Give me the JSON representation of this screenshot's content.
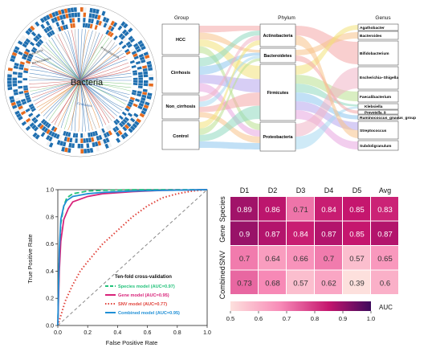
{
  "tree": {
    "center_label": "Bacteria",
    "small_labels": [
      "Actinobacteria",
      "Bacteroidetes",
      "Firmicutes",
      "Proteobacteria"
    ]
  },
  "sankey": {
    "headers": [
      "Group",
      "Phylum",
      "Genus"
    ],
    "groups": [
      "HCC",
      "Cirrhosis",
      "Non_cirrhosis",
      "Control"
    ],
    "phyla": [
      "Actinobacteria",
      "Bacteroidetes",
      "Firmicutes",
      "Proteobacteria"
    ],
    "genera": [
      "Agathobacter",
      "Bacteroides",
      "Bifidobacterium",
      "Escherichia–Shigella",
      "Faecalibacterium",
      "Klebsiella",
      "Prevotella_9",
      "Ruminococcus_gnavus_group",
      "Streptococcus",
      "Subdoligranulum"
    ],
    "colors": [
      "#f4a8a8",
      "#f7c28a",
      "#f2e27a",
      "#b9e08f",
      "#8fd8c0",
      "#8ec6ef",
      "#b7a6ec",
      "#e8a6e0",
      "#f0b4c6",
      "#a8d8f0"
    ]
  },
  "chart_data": [
    {
      "type": "line",
      "xlabel": "False Positive Rate",
      "ylabel": "True Positive Rate",
      "xlim": [
        0,
        1
      ],
      "ylim": [
        0,
        1
      ],
      "xticks": [
        "0.0",
        "0.2",
        "0.4",
        "0.6",
        "0.8",
        "1.0"
      ],
      "yticks": [
        "0.0",
        "0.2",
        "0.4",
        "0.6",
        "0.8",
        "1.0"
      ],
      "legend_title": "Ten-fold cross-validation",
      "legend_position": "bottom-right",
      "series": [
        {
          "name": "Species model (AUC=0.97)",
          "color": "#22c27a",
          "dash": "dashed",
          "x": [
            0,
            0.01,
            0.02,
            0.04,
            0.06,
            0.1,
            0.15,
            0.2,
            0.3,
            0.5,
            0.7,
            1.0
          ],
          "y": [
            0,
            0.5,
            0.75,
            0.88,
            0.94,
            0.97,
            0.98,
            0.99,
            0.995,
            1.0,
            1.0,
            1.0
          ]
        },
        {
          "name": "Gene model (AUC=0.95)",
          "color": "#d8237a",
          "dash": "solid",
          "x": [
            0,
            0.01,
            0.02,
            0.04,
            0.07,
            0.1,
            0.15,
            0.2,
            0.3,
            0.5,
            0.7,
            1.0
          ],
          "y": [
            0,
            0.4,
            0.62,
            0.78,
            0.86,
            0.91,
            0.93,
            0.95,
            0.97,
            0.985,
            0.995,
            1.0
          ]
        },
        {
          "name": "SNV model (AUC=0.77)",
          "color": "#e0423a",
          "dash": "dotted",
          "x": [
            0,
            0.05,
            0.1,
            0.15,
            0.2,
            0.3,
            0.4,
            0.5,
            0.6,
            0.7,
            0.8,
            0.9,
            1.0
          ],
          "y": [
            0,
            0.18,
            0.3,
            0.4,
            0.47,
            0.6,
            0.7,
            0.8,
            0.88,
            0.94,
            0.97,
            0.99,
            1.0
          ]
        },
        {
          "name": "Combined model (AUC=0.95)",
          "color": "#1f8fd6",
          "dash": "solid",
          "x": [
            0,
            0.01,
            0.02,
            0.04,
            0.06,
            0.1,
            0.15,
            0.2,
            0.3,
            0.5,
            0.7,
            1.0
          ],
          "y": [
            0,
            0.55,
            0.78,
            0.88,
            0.92,
            0.95,
            0.96,
            0.97,
            0.98,
            0.99,
            0.995,
            1.0
          ]
        }
      ]
    },
    {
      "type": "heatmap",
      "columns": [
        "D1",
        "D2",
        "D3",
        "D4",
        "D5",
        "Avg"
      ],
      "rows": [
        "Species",
        "Gene",
        "SNV",
        "Combined"
      ],
      "values": [
        [
          0.89,
          0.86,
          0.71,
          0.84,
          0.85,
          0.83
        ],
        [
          0.9,
          0.87,
          0.84,
          0.87,
          0.85,
          0.87
        ],
        [
          0.7,
          0.64,
          0.66,
          0.7,
          0.57,
          0.65
        ],
        [
          0.73,
          0.68,
          0.57,
          0.62,
          0.39,
          0.6
        ]
      ],
      "colorbar": {
        "label": "AUC",
        "ticks": [
          "0.5",
          "0.6",
          "0.7",
          "0.8",
          "0.9",
          "1.0"
        ],
        "range": [
          0.5,
          1.0
        ]
      }
    }
  ]
}
